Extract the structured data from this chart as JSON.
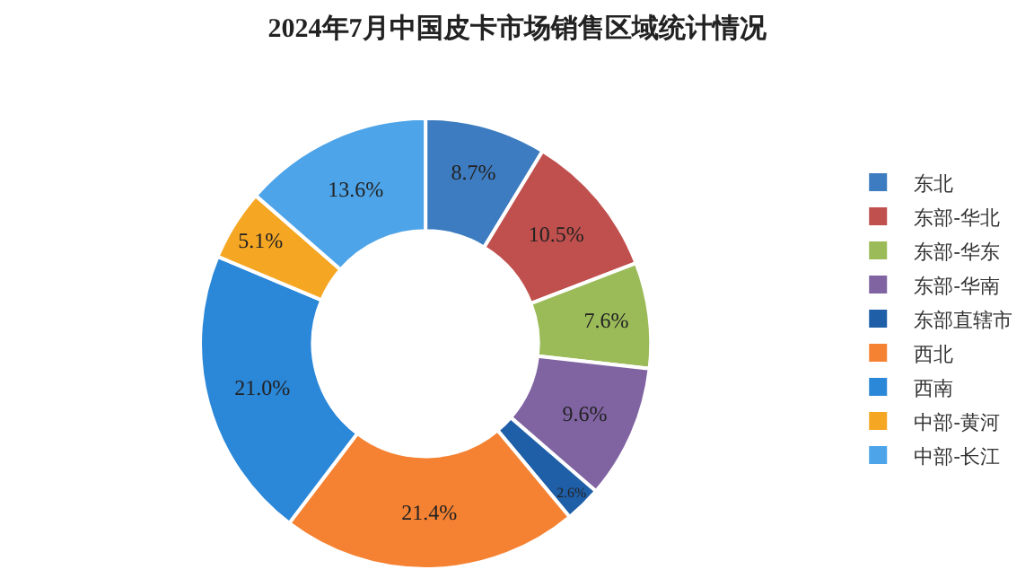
{
  "chart_data": {
    "type": "donut",
    "title": "2024年7月中国皮卡市场销售区域统计情况",
    "categories": [
      "东北",
      "东部-华北",
      "东部-华东",
      "东部-华南",
      "东部直辖市",
      "西北",
      "西南",
      "中部-黄河",
      "中部-长江"
    ],
    "values": [
      8.7,
      10.5,
      7.6,
      9.6,
      2.6,
      21.4,
      21.0,
      5.1,
      13.6
    ],
    "value_labels": [
      "8.7%",
      "10.5%",
      "7.6%",
      "9.6%",
      "2.6%",
      "21.4%",
      "21.0%",
      "5.1%",
      "13.6%"
    ],
    "colors": [
      "#3d7cc0",
      "#c0504d",
      "#9bbb59",
      "#8064a2",
      "#1f5fa8",
      "#f58232",
      "#2b87d8",
      "#f5a623",
      "#4ea4e8"
    ],
    "legend": "right"
  }
}
